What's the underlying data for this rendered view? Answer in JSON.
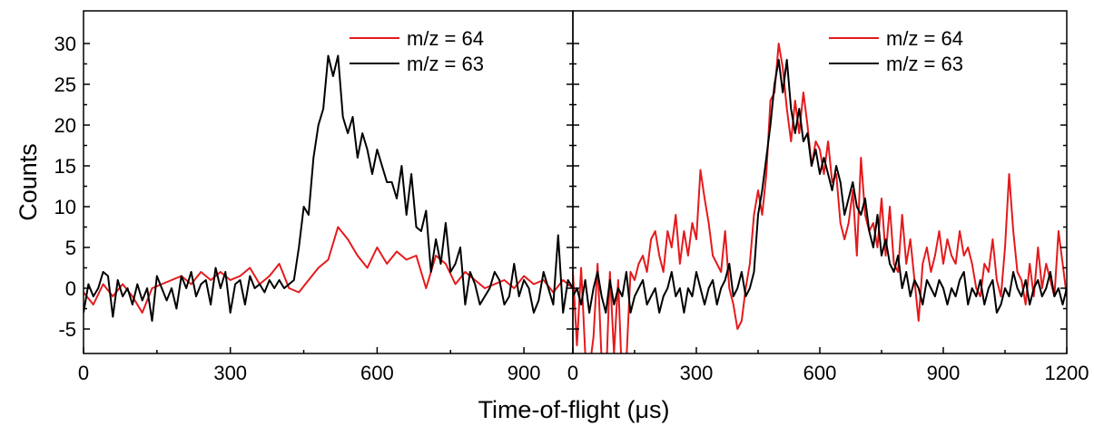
{
  "chart_data": [
    {
      "type": "line",
      "panel": "left",
      "xlim": [
        0,
        1000
      ],
      "ylim": [
        -8,
        34
      ],
      "x_ticks": [
        0,
        300,
        600,
        900
      ],
      "y_ticks": [
        -5,
        0,
        5,
        10,
        15,
        20,
        25,
        30
      ],
      "ylabel": "Counts",
      "legend_position": "top-right",
      "series": [
        {
          "name": "m/z = 64",
          "color": "#e41a1c",
          "x": [
            0,
            20,
            40,
            60,
            80,
            100,
            120,
            140,
            160,
            180,
            200,
            220,
            240,
            260,
            280,
            300,
            320,
            340,
            360,
            380,
            400,
            420,
            440,
            460,
            480,
            500,
            520,
            540,
            560,
            580,
            600,
            620,
            640,
            660,
            680,
            700,
            720,
            740,
            760,
            780,
            800,
            820,
            840,
            860,
            880,
            900,
            920,
            940,
            960,
            980,
            1000
          ],
          "y": [
            -0.5,
            -2,
            0.5,
            -1,
            0.5,
            -1,
            -3,
            0,
            0.5,
            1,
            1.5,
            0.5,
            2,
            1,
            2,
            1,
            1.5,
            2.5,
            0.5,
            1.5,
            3,
            0,
            -0.5,
            1,
            2.5,
            3.5,
            7.5,
            6,
            4,
            2.5,
            5,
            3,
            4.5,
            3.5,
            4,
            0,
            4,
            3,
            0.5,
            2,
            1,
            0,
            0.5,
            1,
            0,
            1.5,
            0.5,
            1,
            -0.5,
            1,
            0
          ]
        },
        {
          "name": "m/z = 63",
          "color": "#000000",
          "x": [
            0,
            10,
            20,
            30,
            40,
            50,
            60,
            70,
            80,
            90,
            100,
            110,
            120,
            130,
            140,
            150,
            160,
            170,
            180,
            190,
            200,
            210,
            220,
            230,
            240,
            250,
            260,
            270,
            280,
            290,
            300,
            310,
            320,
            330,
            340,
            350,
            360,
            370,
            380,
            390,
            400,
            410,
            420,
            430,
            440,
            450,
            460,
            470,
            480,
            490,
            500,
            510,
            520,
            530,
            540,
            550,
            560,
            570,
            580,
            590,
            600,
            610,
            620,
            630,
            640,
            650,
            660,
            670,
            680,
            690,
            700,
            710,
            720,
            730,
            740,
            750,
            760,
            770,
            780,
            790,
            800,
            810,
            820,
            830,
            840,
            850,
            860,
            870,
            880,
            890,
            900,
            910,
            920,
            930,
            940,
            950,
            960,
            970,
            980,
            990,
            1000
          ],
          "y": [
            -3,
            0.5,
            -1,
            0,
            2,
            1.5,
            -3.5,
            1,
            -1,
            0,
            -2,
            0.5,
            -1.5,
            0,
            -4,
            1.5,
            0,
            -1.5,
            0,
            -2.5,
            1.5,
            0,
            2,
            -1,
            0.5,
            1,
            -2,
            2.5,
            0,
            2,
            -3,
            0.5,
            1,
            -2,
            1.5,
            0,
            0.5,
            -0.5,
            1,
            0,
            1,
            0,
            0.5,
            1,
            5,
            10,
            9,
            16,
            20,
            22,
            28.5,
            26,
            28.5,
            21,
            19,
            21,
            16,
            19,
            17,
            14,
            17,
            15,
            13,
            13,
            11,
            15,
            9,
            14,
            7.5,
            7,
            9.5,
            2,
            6,
            3,
            8,
            2,
            3,
            5,
            -2,
            2,
            0.5,
            -2,
            -1,
            0,
            2,
            1,
            -2,
            -1,
            3,
            -1,
            1,
            0,
            -3,
            -1.5,
            2,
            0,
            -2,
            6.5,
            -3,
            1,
            0
          ]
        }
      ]
    },
    {
      "type": "line",
      "panel": "right",
      "xlim": [
        0,
        1200
      ],
      "ylim": [
        -8,
        34
      ],
      "x_ticks": [
        0,
        300,
        600,
        900,
        1200
      ],
      "legend_position": "top-right",
      "series": [
        {
          "name": "m/z = 64",
          "color": "#e41a1c",
          "x": [
            0,
            10,
            20,
            30,
            40,
            50,
            60,
            70,
            80,
            90,
            100,
            110,
            120,
            130,
            140,
            150,
            160,
            170,
            180,
            190,
            200,
            210,
            220,
            230,
            240,
            250,
            260,
            270,
            280,
            290,
            300,
            310,
            320,
            330,
            340,
            350,
            360,
            370,
            380,
            390,
            400,
            410,
            420,
            430,
            440,
            450,
            460,
            470,
            480,
            490,
            500,
            510,
            520,
            530,
            540,
            550,
            560,
            570,
            580,
            590,
            600,
            610,
            620,
            630,
            640,
            650,
            660,
            670,
            680,
            690,
            700,
            710,
            720,
            730,
            740,
            750,
            760,
            770,
            780,
            790,
            800,
            810,
            820,
            830,
            840,
            850,
            860,
            870,
            880,
            890,
            900,
            910,
            920,
            930,
            940,
            950,
            960,
            970,
            980,
            990,
            1000,
            1010,
            1020,
            1030,
            1040,
            1050,
            1060,
            1070,
            1080,
            1090,
            1100,
            1110,
            1120,
            1130,
            1140,
            1150,
            1160,
            1170,
            1180,
            1190,
            1200
          ],
          "y": [
            2,
            -7,
            2.5,
            -8,
            -10,
            -6,
            3,
            -9,
            -12,
            2,
            -8,
            1,
            -12,
            -9,
            2,
            1,
            3,
            4,
            2,
            6,
            7,
            4,
            2,
            7,
            5,
            9,
            3,
            7,
            4,
            8,
            6,
            14.5,
            11,
            8,
            4,
            3,
            2,
            7,
            0,
            -2,
            -5,
            -4,
            0,
            3,
            9,
            12,
            9,
            14,
            23,
            24,
            30,
            27,
            22,
            18,
            23,
            19,
            24,
            20,
            15,
            18,
            17,
            14,
            18,
            13,
            14,
            8,
            6,
            8,
            12,
            4,
            16,
            9,
            7,
            8,
            5,
            11,
            4,
            10,
            3,
            2,
            9,
            3,
            6,
            1,
            -4,
            3,
            5,
            2,
            4,
            7,
            3,
            6,
            4,
            3,
            7,
            4,
            5,
            3,
            0,
            -1,
            3,
            2,
            6,
            1,
            -1,
            5,
            14,
            7,
            2,
            1,
            -2,
            3,
            -1,
            5,
            0,
            3,
            1,
            -1,
            7,
            3,
            -1
          ]
        },
        {
          "name": "m/z = 63",
          "color": "#000000",
          "x": [
            0,
            10,
            20,
            30,
            40,
            50,
            60,
            70,
            80,
            90,
            100,
            110,
            120,
            130,
            140,
            150,
            160,
            170,
            180,
            190,
            200,
            210,
            220,
            230,
            240,
            250,
            260,
            270,
            280,
            290,
            300,
            310,
            320,
            330,
            340,
            350,
            360,
            370,
            380,
            390,
            400,
            410,
            420,
            430,
            440,
            450,
            460,
            470,
            480,
            490,
            500,
            510,
            520,
            530,
            540,
            550,
            560,
            570,
            580,
            590,
            600,
            610,
            620,
            630,
            640,
            650,
            660,
            670,
            680,
            690,
            700,
            710,
            720,
            730,
            740,
            750,
            760,
            770,
            780,
            790,
            800,
            810,
            820,
            830,
            840,
            850,
            860,
            870,
            880,
            890,
            900,
            910,
            920,
            930,
            940,
            950,
            960,
            970,
            980,
            990,
            1000,
            1010,
            1020,
            1030,
            1040,
            1050,
            1060,
            1070,
            1080,
            1090,
            1100,
            1110,
            1120,
            1130,
            1140,
            1150,
            1160,
            1170,
            1180,
            1190,
            1200
          ],
          "y": [
            -1,
            0,
            -2,
            1,
            -3,
            0,
            2,
            -1,
            -3,
            1,
            -2,
            0,
            -1,
            2,
            -3,
            -1,
            0,
            1,
            -2,
            -1,
            0,
            -3,
            -1,
            0,
            2,
            -1,
            0,
            -3,
            0,
            -1,
            2,
            0,
            -2,
            0,
            1,
            -2,
            0,
            1,
            3,
            -1,
            0,
            2,
            -1,
            0,
            2,
            9,
            12,
            16,
            20,
            25,
            28,
            24,
            28,
            22,
            19,
            22,
            18,
            19,
            15,
            17,
            14,
            16,
            14,
            12,
            15,
            13,
            9,
            11,
            13,
            10,
            9,
            11,
            7,
            5,
            9,
            4,
            6,
            3,
            2,
            4,
            0,
            2,
            -1,
            1,
            0,
            -2,
            1,
            0,
            -1,
            1,
            0,
            -2,
            0,
            -1,
            1,
            2,
            -2,
            0,
            -1,
            1,
            -2,
            0,
            1,
            -3,
            -2,
            0,
            -1,
            2,
            0,
            -1,
            1,
            -2,
            0,
            1,
            -1,
            0,
            2,
            -1,
            0,
            -2,
            0
          ]
        }
      ]
    }
  ],
  "xlabel": "Time-of-flight (μs)"
}
